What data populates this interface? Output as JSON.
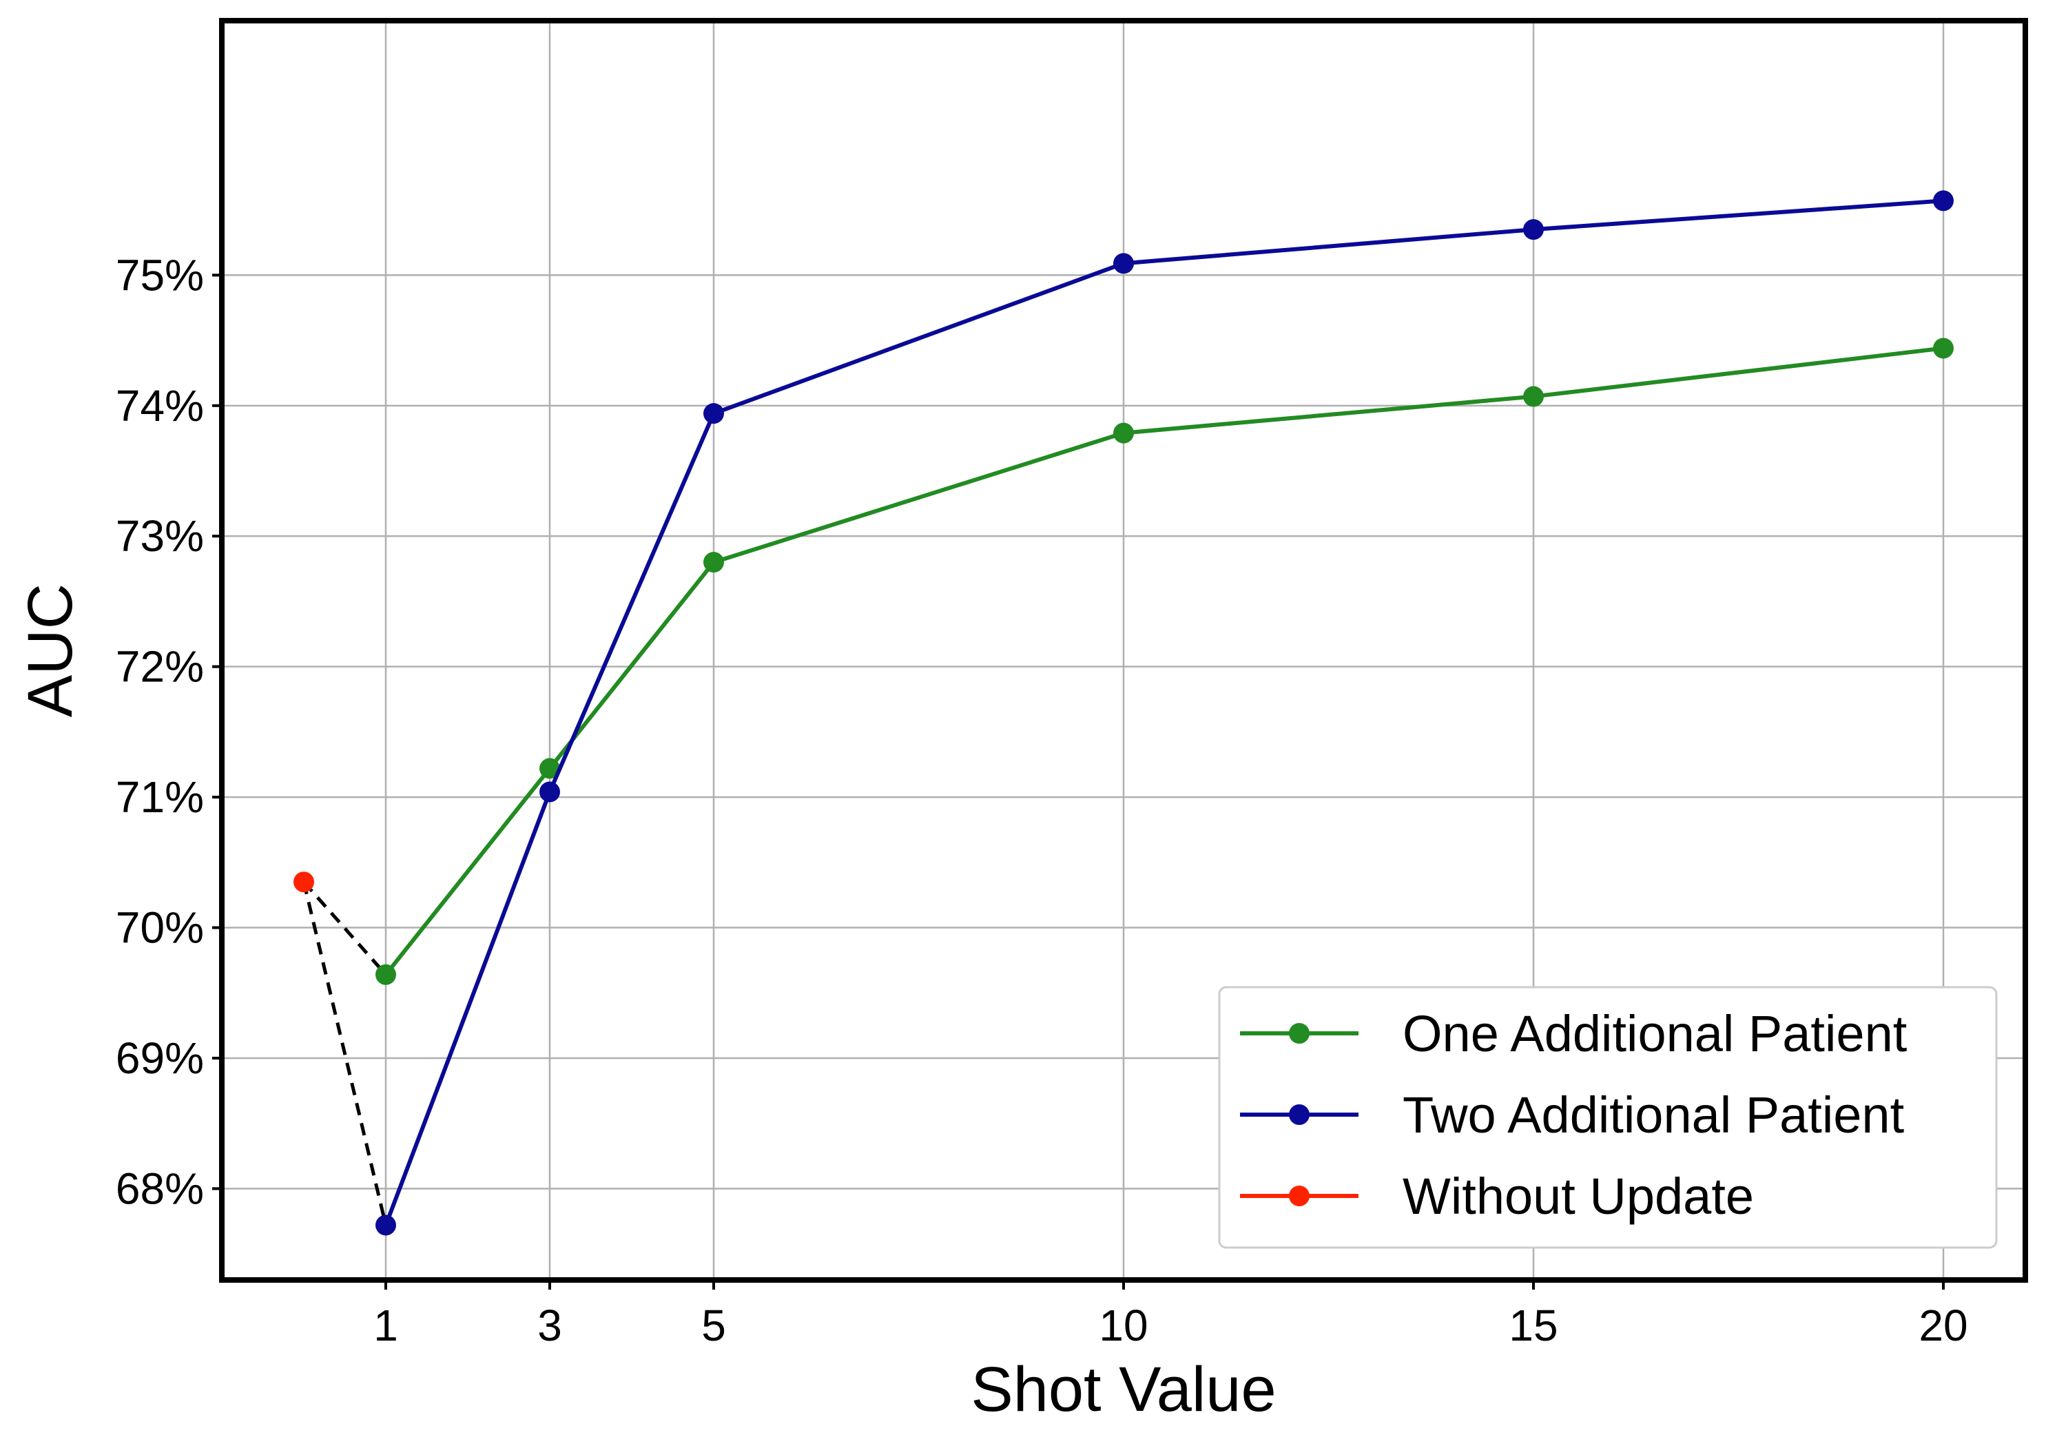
{
  "chart_data": {
    "type": "line",
    "xlabel": "Shot Value",
    "ylabel": "AUC",
    "xlim": [
      -1,
      21
    ],
    "ylim": [
      67.3,
      76.95
    ],
    "x_ticks": [
      1,
      3,
      5,
      10,
      15,
      20
    ],
    "x_tick_labels": [
      "1",
      "3",
      "5",
      "10",
      "15",
      "20"
    ],
    "y_ticks": [
      68,
      69,
      70,
      71,
      72,
      73,
      74,
      75
    ],
    "y_tick_labels": [
      "68%",
      "69%",
      "70%",
      "71%",
      "72%",
      "73%",
      "74%",
      "75%"
    ],
    "grid": true,
    "legend_position": "lower-right",
    "series": [
      {
        "name": "One Additional Patient",
        "color": "#228b22",
        "x": [
          1,
          3,
          5,
          10,
          15,
          20
        ],
        "values": [
          69.64,
          71.22,
          72.8,
          73.79,
          74.07,
          74.44
        ]
      },
      {
        "name": "Two Additional Patient",
        "color": "#0a0a96",
        "x": [
          1,
          3,
          5,
          10,
          15,
          20
        ],
        "values": [
          67.72,
          71.04,
          73.94,
          75.09,
          75.35,
          75.57
        ]
      },
      {
        "name": "Without Update",
        "color": "#ff2200",
        "x": [
          0
        ],
        "values": [
          70.35
        ]
      }
    ],
    "reference_lines": {
      "color": "#000000",
      "style": "dashed",
      "segments": [
        {
          "from": [
            0,
            70.35
          ],
          "to": [
            1,
            69.64
          ]
        },
        {
          "from": [
            0,
            70.35
          ],
          "to": [
            1,
            67.72
          ]
        }
      ]
    }
  }
}
